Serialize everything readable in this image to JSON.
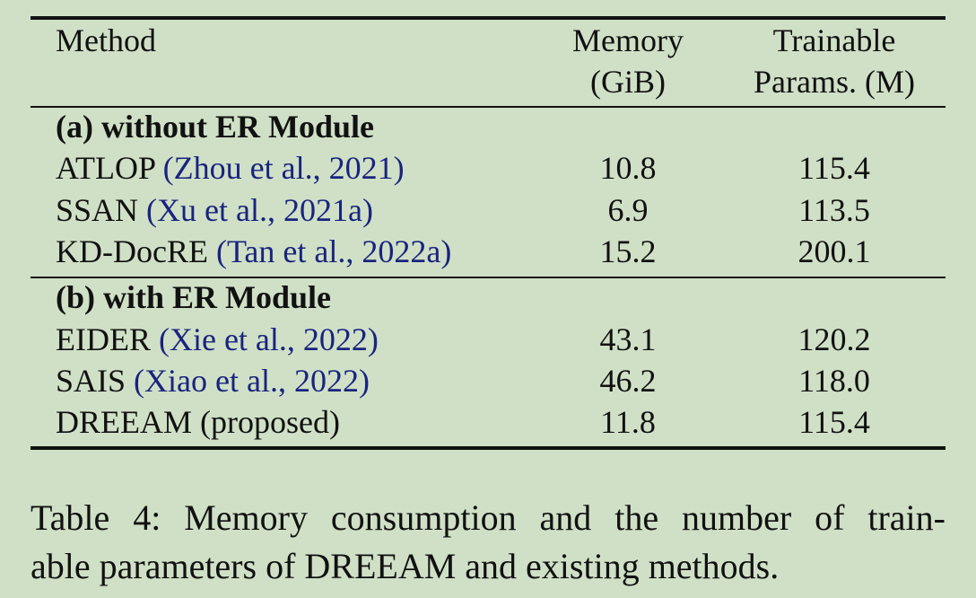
{
  "table": {
    "header": {
      "method": "Method",
      "memory_line1": "Memory",
      "memory_line2": "(GiB)",
      "params_line1": "Trainable",
      "params_line2": "Params. (M)"
    },
    "section_a": {
      "title": "(a) without ER Module",
      "rows": [
        {
          "method": "ATLOP",
          "cite": "(Zhou et al., 2021)",
          "memory": "10.8",
          "params": "115.4"
        },
        {
          "method": "SSAN",
          "cite": "(Xu et al., 2021a)",
          "memory": "6.9",
          "params": "113.5"
        },
        {
          "method": "KD-DocRE",
          "cite": "(Tan et al., 2022a)",
          "memory": "15.2",
          "params": "200.1"
        }
      ]
    },
    "section_b": {
      "title": "(b) with ER Module",
      "rows": [
        {
          "method": "EIDER",
          "cite": "(Xie et al., 2022)",
          "memory": "43.1",
          "params": "120.2"
        },
        {
          "method": "SAIS",
          "cite": "(Xiao et al., 2022)",
          "memory": "46.2",
          "params": "118.0"
        },
        {
          "method": "DREEAM (proposed)",
          "cite": "",
          "memory": "11.8",
          "params": "115.4"
        }
      ]
    }
  },
  "caption": {
    "line1": "Table 4: Memory consumption and the number of train-",
    "line2": "able parameters of DREEAM and existing methods."
  },
  "colors": {
    "background": "#cfe0c6",
    "citation": "#1a237e"
  }
}
